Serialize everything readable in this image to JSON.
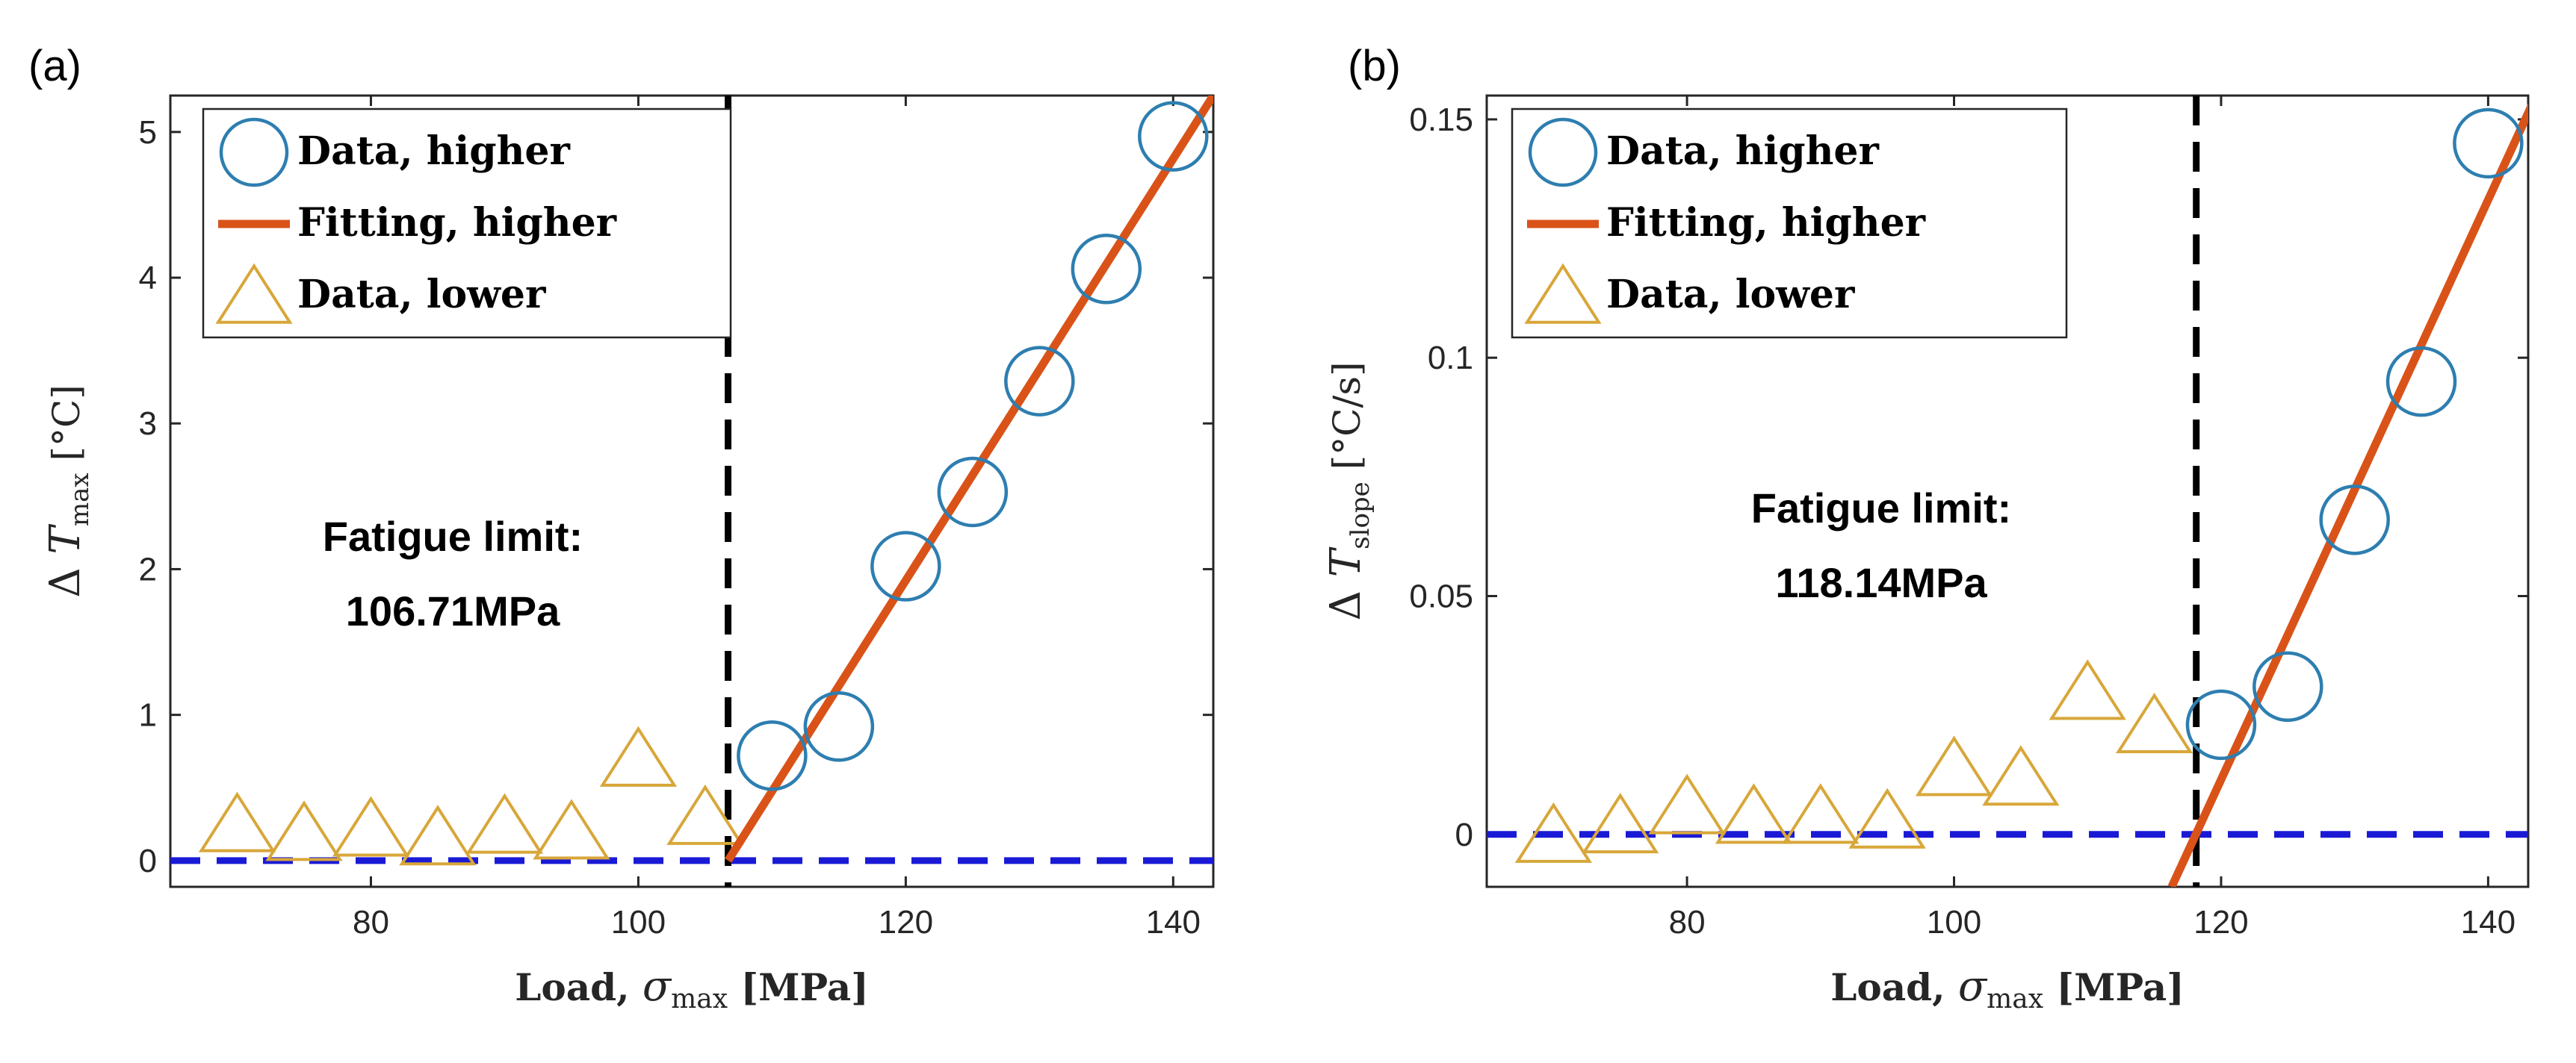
{
  "colors": {
    "circle": "#2e7eb0",
    "fit": "#d95319",
    "triangle": "#d8a73a",
    "baseline": "#1a1ad6",
    "vline": "#000000",
    "axis": "#262626"
  },
  "chart_data": [
    {
      "type": "scatter",
      "panel_label": "(a)",
      "xlabel": "Load, σmax [MPa]",
      "ylabel": "Δ Tmax [°C]",
      "ylabel_parts": {
        "delta": "Δ",
        "sym": "T",
        "sub": "max",
        "unit": "[°C]"
      },
      "xlabel_parts": {
        "text": "Load,",
        "sym": "σ",
        "sub": "max",
        "unit": "[MPa]"
      },
      "xlim": [
        65,
        143
      ],
      "ylim": [
        -0.18,
        5.25
      ],
      "xticks": [
        80,
        100,
        120,
        140
      ],
      "yticks": [
        0,
        1,
        2,
        3,
        4,
        5
      ],
      "ytick_labels": [
        "0",
        "1",
        "2",
        "3",
        "4",
        "5"
      ],
      "legend": [
        "Data, higher",
        "Fitting, higher",
        "Data, lower"
      ],
      "legend_position": "top-left",
      "series": [
        {
          "name": "Data, higher",
          "marker": "circle",
          "x": [
            110,
            115,
            120,
            125,
            130,
            135,
            140
          ],
          "y": [
            0.72,
            0.92,
            2.02,
            2.53,
            3.29,
            4.06,
            4.97
          ]
        },
        {
          "name": "Data, lower",
          "marker": "triangle",
          "x": [
            70,
            75,
            80,
            85,
            90,
            95,
            100,
            105
          ],
          "y": [
            0.22,
            0.16,
            0.19,
            0.13,
            0.21,
            0.17,
            0.67,
            0.27
          ]
        },
        {
          "name": "Fitting, higher",
          "marker": "line",
          "x": [
            106.71,
            143
          ],
          "y": [
            0.0,
            5.25
          ]
        }
      ],
      "baseline_y": 0,
      "fatigue_limit_x": 106.71,
      "annotation_line1": "Fatigue limit:",
      "annotation_line2": "106.71MPa"
    },
    {
      "type": "scatter",
      "panel_label": "(b)",
      "xlabel": "Load, σmax [MPa]",
      "ylabel": "Δ Tslope [°C/s]",
      "ylabel_parts": {
        "delta": "Δ",
        "sym": "T",
        "sub": "slope",
        "unit": "[°C/s]"
      },
      "xlabel_parts": {
        "text": "Load,",
        "sym": "σ",
        "sub": "max",
        "unit": "[MPa]"
      },
      "xlim": [
        65,
        143
      ],
      "ylim": [
        -0.011,
        0.155
      ],
      "xticks": [
        80,
        100,
        120,
        140
      ],
      "yticks": [
        0,
        0.05,
        0.1,
        0.15
      ],
      "ytick_labels": [
        "0",
        "0.05",
        "0.1",
        "0.15"
      ],
      "legend": [
        "Data, higher",
        "Fitting, higher",
        "Data, lower"
      ],
      "legend_position": "top-left",
      "series": [
        {
          "name": "Data, higher",
          "marker": "circle",
          "x": [
            120,
            125,
            130,
            135,
            140
          ],
          "y": [
            0.023,
            0.031,
            0.066,
            0.095,
            0.145
          ]
        },
        {
          "name": "Data, lower",
          "marker": "triangle",
          "x": [
            70,
            75,
            80,
            85,
            90,
            95,
            100,
            105,
            110,
            115
          ],
          "y": [
            -0.001,
            0.001,
            0.005,
            0.003,
            0.003,
            0.002,
            0.013,
            0.011,
            0.029,
            0.022
          ]
        },
        {
          "name": "Fitting, higher",
          "marker": "line",
          "x": [
            116.3,
            143.6
          ],
          "y": [
            -0.011,
            0.155
          ]
        }
      ],
      "baseline_y": 0,
      "fatigue_limit_x": 118.14,
      "annotation_line1": "Fatigue limit:",
      "annotation_line2": "118.14MPa"
    }
  ]
}
